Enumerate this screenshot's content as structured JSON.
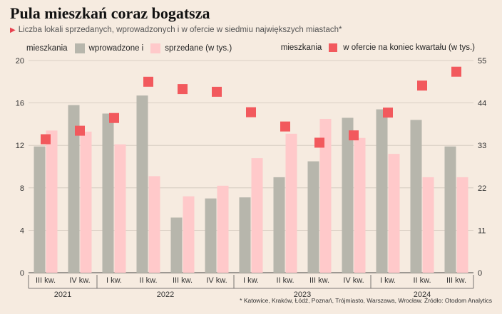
{
  "chart_data": {
    "type": "bar",
    "title": "Pula mieszkań coraz bogatsza",
    "subtitle": "Liczba lokali sprzedanych, wprowadzonych i w ofercie w siedmiu największych miastach*",
    "legend_left_unit": "mieszkania",
    "legend_right_unit": "mieszkania",
    "categories": [
      "III kw.",
      "IV kw.",
      "I kw.",
      "II kw.",
      "III kw.",
      "IV kw.",
      "I kw.",
      "II kw.",
      "III kw.",
      "IV kw.",
      "I kw.",
      "II kw.",
      "III kw."
    ],
    "years": [
      {
        "label": "2021",
        "start": 0,
        "end": 1
      },
      {
        "label": "2022",
        "start": 2,
        "end": 5
      },
      {
        "label": "2023",
        "start": 6,
        "end": 9
      },
      {
        "label": "2024",
        "start": 10,
        "end": 12
      }
    ],
    "series": [
      {
        "name": "wprowadzone i",
        "axis": "left",
        "color": "#b7b6ac",
        "values": [
          11.9,
          15.8,
          15.0,
          16.7,
          5.2,
          7.0,
          7.1,
          9.0,
          10.5,
          14.6,
          15.4,
          14.4,
          11.9
        ]
      },
      {
        "name": "sprzedane (w tys.)",
        "axis": "left",
        "color": "#ffc9ca",
        "values": [
          13.4,
          13.3,
          12.1,
          9.1,
          7.2,
          8.2,
          10.8,
          13.1,
          14.5,
          12.7,
          11.2,
          9.0,
          9.0
        ]
      },
      {
        "name": "w ofercie na koniec kwartału (w tys.)",
        "axis": "right",
        "color": "#f2595d",
        "values": [
          34.6,
          36.8,
          40.1,
          49.5,
          47.6,
          46.9,
          41.6,
          37.9,
          33.7,
          35.6,
          41.5,
          48.5,
          52.1
        ]
      }
    ],
    "y_left": {
      "min": 0,
      "max": 20,
      "ticks": [
        "0",
        "4",
        "8",
        "12",
        "16",
        "20"
      ]
    },
    "y_right": {
      "min": 0,
      "max": 55,
      "ticks": [
        "0",
        "11",
        "22",
        "33",
        "44",
        "55"
      ]
    },
    "grid": true,
    "footnote": "* Katowice, Kraków, Łódź, Poznań, Trójmiasto, Warszawa, Wrocław. Źródło: Otodom Analytics"
  }
}
